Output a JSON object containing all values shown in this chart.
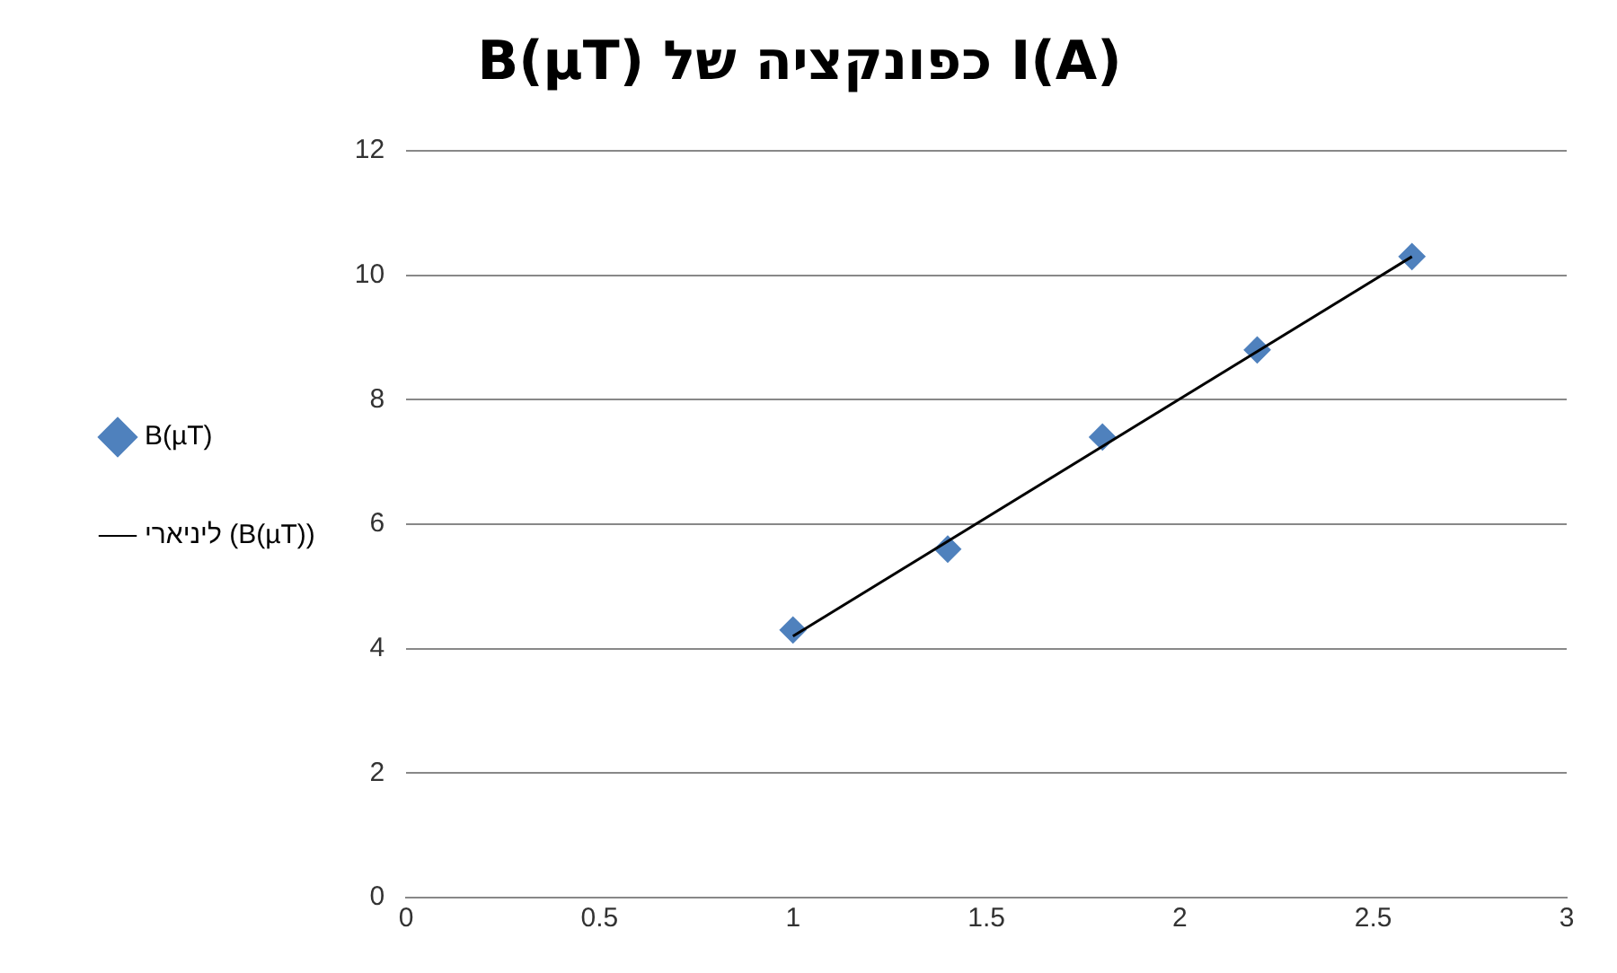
{
  "chart_data": {
    "type": "scatter",
    "title": "B(µT) כפונקציה של I(A)",
    "x": [
      1,
      1.4,
      1.8,
      2.2,
      2.6
    ],
    "series": [
      {
        "name": "B(µT)",
        "color": "#4f81bd",
        "values": [
          4.3,
          5.6,
          7.4,
          8.8,
          10.3
        ],
        "marker": "diamond"
      },
      {
        "name": "ליניארי (B(µT))",
        "type": "line",
        "color": "#000000",
        "x": [
          1,
          2.6
        ],
        "values": [
          4.2,
          10.3
        ],
        "marker": "none",
        "line_style": "solid"
      }
    ],
    "xlim": [
      0,
      3
    ],
    "xticks": [
      0,
      0.5,
      1,
      1.5,
      2,
      2.5,
      3
    ],
    "ylim": [
      0,
      12
    ],
    "yticks": [
      0,
      2,
      4,
      6,
      8,
      10,
      12
    ],
    "grid": "y",
    "legend": "left"
  }
}
